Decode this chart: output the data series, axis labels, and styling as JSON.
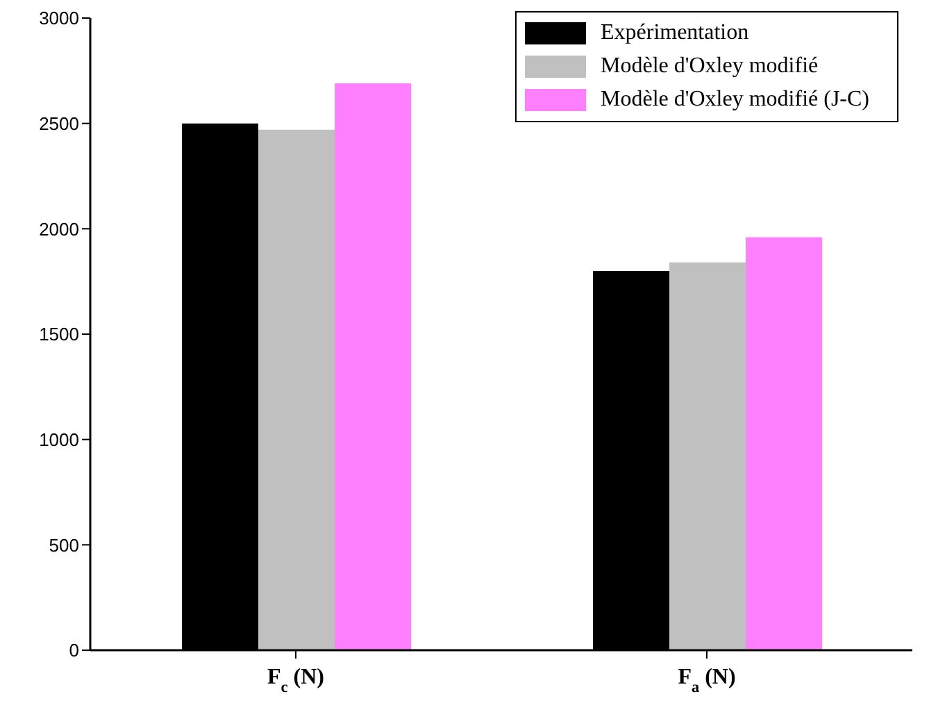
{
  "chart_data": {
    "type": "bar",
    "categories": [
      "F$_{c}$ (N)",
      "F$_{a}$ (N)"
    ],
    "series": [
      {
        "name": "Expérimentation",
        "color": "#000000",
        "values": [
          2500,
          1800
        ]
      },
      {
        "name": "Modèle d'Oxley modifié",
        "color": "#c0c0c0",
        "values": [
          2470,
          1840
        ]
      },
      {
        "name": "Modèle d'Oxley modifié (J-C)",
        "color": "#ff80ff",
        "values": [
          2690,
          1960
        ]
      }
    ],
    "ylim": [
      0,
      3000
    ],
    "yticks": [
      0,
      500,
      1000,
      1500,
      2000,
      2500,
      3000
    ],
    "legend": "top right"
  }
}
